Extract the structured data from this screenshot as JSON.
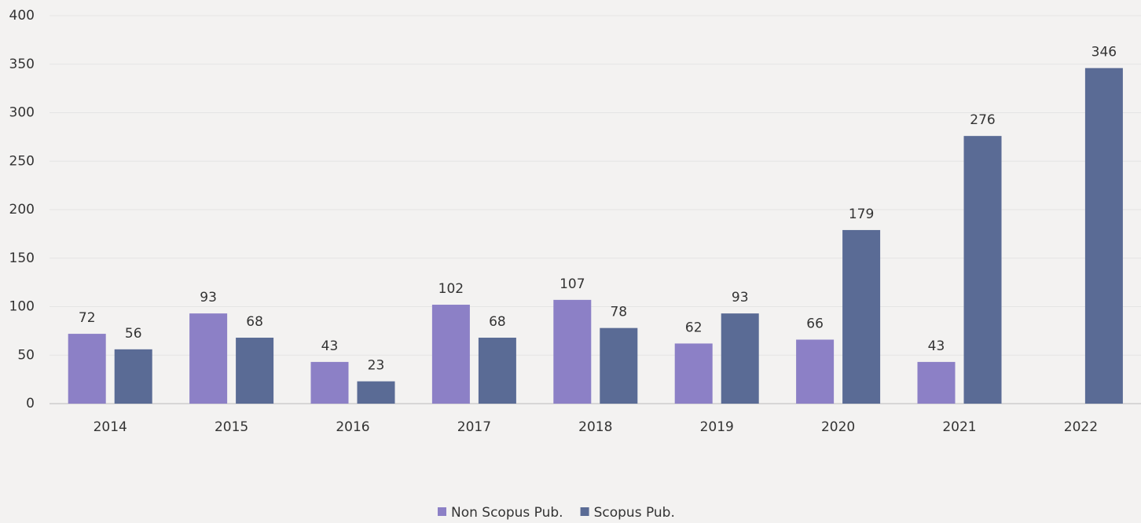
{
  "chart_data": {
    "type": "bar",
    "categories": [
      "2014",
      "2015",
      "2016",
      "2017",
      "2018",
      "2019",
      "2020",
      "2021",
      "2022"
    ],
    "series": [
      {
        "name": "Non Scopus Pub.",
        "color": "#8c80c6",
        "values": [
          72,
          93,
          43,
          102,
          107,
          62,
          66,
          43,
          null
        ]
      },
      {
        "name": "Scopus Pub.",
        "color": "#5a6b95",
        "values": [
          56,
          68,
          23,
          68,
          78,
          93,
          179,
          276,
          346
        ]
      }
    ],
    "ylim": [
      0,
      400
    ],
    "yticks": [
      0,
      50,
      100,
      150,
      200,
      250,
      300,
      350,
      400
    ],
    "grid": true,
    "legend": "bottom"
  }
}
